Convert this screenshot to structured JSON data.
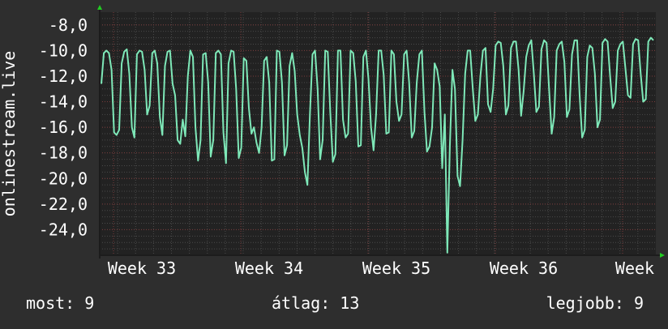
{
  "chart_data": {
    "type": "line",
    "ylabel": "onlinestream.live",
    "y_ticks": [
      "-8,0",
      "-10,0",
      "-12,0",
      "-14,0",
      "-16,0",
      "-18,0",
      "-20,0",
      "-22,0",
      "-24,0"
    ],
    "y_tick_values": [
      -8,
      -10,
      -12,
      -14,
      -16,
      -18,
      -20,
      -22,
      -24
    ],
    "ylim": [
      -26.0,
      -7.0
    ],
    "x_ticks": [
      "Week 33",
      "Week 34",
      "Week 35",
      "Week 36",
      "Week"
    ],
    "grid": true,
    "colors": {
      "background": "#2e2e2e",
      "plot_area": "#222222",
      "grid_minor": "#4a4a4a",
      "grid_major": "#7a3a3a",
      "line": "#7ee8b8",
      "axis_arrow": "#22cc22"
    },
    "series": [
      {
        "values": [
          -12.6,
          -10.2,
          -10.0,
          -10.2,
          -11.5,
          -16.4,
          -16.6,
          -16.2,
          -11.0,
          -10.1,
          -9.9,
          -11.8,
          -16.0,
          -16.8,
          -10.3,
          -10.0,
          -10.1,
          -11.5,
          -15.0,
          -14.3,
          -10.2,
          -10.0,
          -11.0,
          -15.2,
          -16.6,
          -11.2,
          -10.1,
          -10.0,
          -12.6,
          -13.5,
          -17.0,
          -17.3,
          -15.4,
          -16.7,
          -12.0,
          -10.0,
          -10.5,
          -16.0,
          -18.6,
          -17.0,
          -10.3,
          -10.2,
          -12.5,
          -18.3,
          -17.0,
          -10.2,
          -10.0,
          -10.3,
          -16.4,
          -18.8,
          -11.0,
          -10.0,
          -10.1,
          -13.0,
          -18.4,
          -17.6,
          -10.6,
          -10.8,
          -14.5,
          -16.5,
          -16.0,
          -17.2,
          -18.0,
          -16.0,
          -10.8,
          -10.5,
          -12.5,
          -18.6,
          -18.5,
          -10.0,
          -10.1,
          -12.5,
          -18.2,
          -17.4,
          -11.2,
          -10.2,
          -11.6,
          -15.0,
          -16.6,
          -17.6,
          -19.5,
          -20.5,
          -15.0,
          -10.3,
          -10.0,
          -13.0,
          -18.5,
          -17.0,
          -10.0,
          -10.1,
          -14.8,
          -18.7,
          -18.1,
          -10.0,
          -10.0,
          -15.4,
          -16.8,
          -16.5,
          -10.0,
          -10.2,
          -12.4,
          -17.5,
          -17.4,
          -10.5,
          -10.0,
          -12.2,
          -16.0,
          -17.8,
          -15.0,
          -10.0,
          -10.0,
          -11.9,
          -16.5,
          -16.4,
          -10.0,
          -10.3,
          -14.0,
          -15.5,
          -15.0,
          -10.3,
          -10.0,
          -12.5,
          -16.8,
          -16.3,
          -12.5,
          -10.3,
          -10.0,
          -14.8,
          -17.9,
          -17.5,
          -16.0,
          -11.0,
          -11.5,
          -12.8,
          -19.2,
          -15.0,
          -25.8,
          -17.5,
          -11.5,
          -13.0,
          -19.8,
          -20.6,
          -17.0,
          -11.8,
          -10.0,
          -10.0,
          -13.0,
          -15.5,
          -15.0,
          -12.0,
          -10.0,
          -9.8,
          -14.2,
          -14.8,
          -13.0,
          -9.6,
          -9.3,
          -9.4,
          -11.2,
          -15.0,
          -14.3,
          -9.8,
          -9.3,
          -9.3,
          -11.5,
          -15.1,
          -13.2,
          -10.5,
          -9.6,
          -9.2,
          -11.8,
          -14.8,
          -14.4,
          -9.9,
          -9.2,
          -9.4,
          -13.0,
          -16.5,
          -15.2,
          -10.0,
          -9.5,
          -9.3,
          -10.9,
          -15.2,
          -14.6,
          -10.3,
          -9.2,
          -9.2,
          -13.5,
          -16.8,
          -16.2,
          -10.5,
          -9.6,
          -9.8,
          -11.8,
          -16.0,
          -15.4,
          -9.4,
          -9.1,
          -9.3,
          -12.0,
          -14.5,
          -14.0,
          -10.0,
          -9.5,
          -9.3,
          -11.4,
          -13.5,
          -13.7,
          -9.5,
          -9.1,
          -9.2,
          -11.8,
          -14.0,
          -13.8,
          -9.3,
          -9.0,
          -9.2
        ]
      }
    ]
  },
  "stats": {
    "current": "most: 9",
    "average": "átlag: 13",
    "best": "legjobb: 9"
  }
}
